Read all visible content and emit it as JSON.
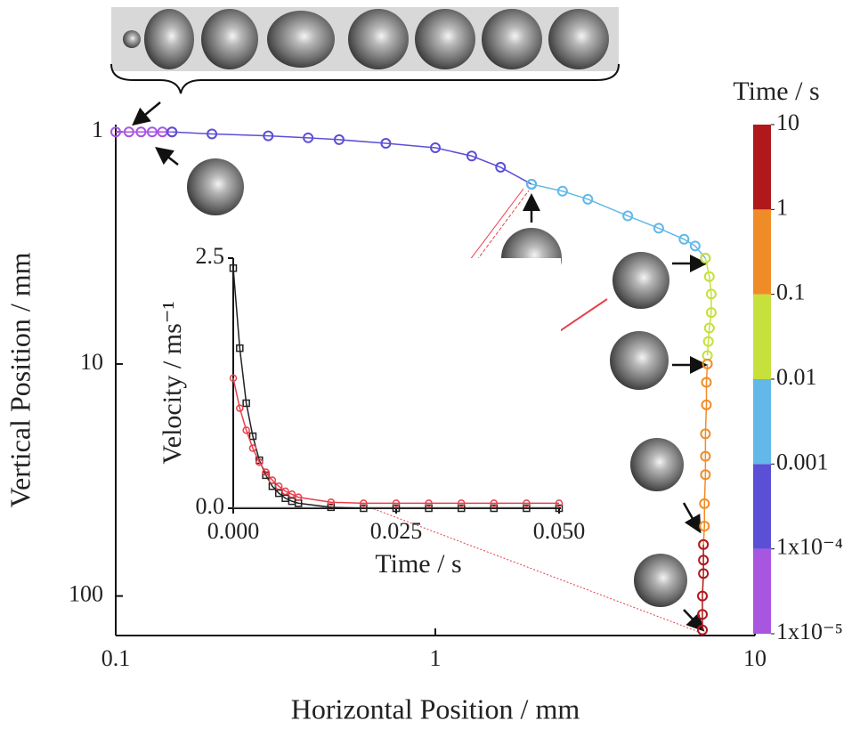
{
  "chart_data": [
    {
      "type": "scatter",
      "xlabel": "Horizontal Position / mm",
      "ylabel": "Vertical Position / mm",
      "xscale": "log",
      "yscale": "log",
      "yinverted": true,
      "xlim": [
        0.1,
        10
      ],
      "xticks": [
        0.1,
        1,
        10
      ],
      "ylim": [
        0.93,
        148
      ],
      "yticks": [
        1,
        10,
        100
      ],
      "series": [
        {
          "color": "#a855e0",
          "x": [
            0.1,
            0.11,
            0.12,
            0.13,
            0.14,
            0.15
          ],
          "y": [
            1.0,
            1.0,
            1.0,
            1.0,
            1.0,
            1.0
          ]
        },
        {
          "color": "#5b4fd6",
          "x": [
            0.15,
            0.2,
            0.3,
            0.4,
            0.5,
            0.7,
            1.0,
            1.3,
            1.6,
            2.0
          ],
          "y": [
            1.0,
            1.02,
            1.04,
            1.06,
            1.08,
            1.12,
            1.17,
            1.27,
            1.42,
            1.68
          ]
        },
        {
          "color": "#62b8e8",
          "x": [
            2.0,
            2.5,
            3,
            4,
            5,
            6,
            6.5,
            7
          ],
          "y": [
            1.68,
            1.8,
            1.95,
            2.3,
            2.6,
            2.9,
            3.1,
            3.5
          ]
        },
        {
          "color": "#c6e03c",
          "x": [
            7.0,
            7.2,
            7.3,
            7.3,
            7.2,
            7.15,
            7.1
          ],
          "y": [
            3.5,
            4.2,
            5,
            6,
            7,
            8,
            9.2
          ]
        },
        {
          "color": "#f08c28",
          "x": [
            7.1,
            7.05,
            7.05,
            7.0,
            7.0,
            7.0,
            6.95,
            6.95,
            6.9
          ],
          "y": [
            10,
            12,
            15,
            20,
            25,
            30,
            40,
            50,
            60
          ]
        },
        {
          "color": "#b0181c",
          "x": [
            6.9,
            6.9,
            6.9,
            6.85,
            6.85,
            6.85
          ],
          "y": [
            60,
            70,
            80,
            100,
            120,
            140
          ]
        }
      ],
      "colorbar": {
        "label": "Time / s",
        "scale": "log",
        "lim": [
          1e-05,
          10
        ],
        "ticks": [
          {
            "value": 1e-05,
            "label": "1x10⁻⁵"
          },
          {
            "value": 0.0001,
            "label": "1x10⁻⁴"
          },
          {
            "value": 0.001,
            "label": "0.001"
          },
          {
            "value": 0.01,
            "label": "0.01"
          },
          {
            "value": 0.1,
            "label": "0.1"
          },
          1,
          10
        ],
        "colors": [
          "#a855e0",
          "#5b4fd6",
          "#62b8e8",
          "#c6e03c",
          "#f08c28",
          "#b0181c"
        ]
      }
    },
    {
      "type": "line",
      "xlabel": "Time / s",
      "ylabel": "Velocity / ms⁻¹",
      "xlim": [
        0,
        0.05
      ],
      "xticks": [
        {
          "value": 0,
          "label": "0.000"
        },
        {
          "value": 0.025,
          "label": "0.025"
        },
        {
          "value": 0.05,
          "label": "0.050"
        }
      ],
      "ylim": [
        0,
        2.5
      ],
      "yticks": [
        {
          "value": 0,
          "label": "0.0"
        },
        2.5
      ],
      "x": [
        0,
        0.001,
        0.002,
        0.003,
        0.004,
        0.005,
        0.006,
        0.007,
        0.008,
        0.009,
        0.01,
        0.015,
        0.02,
        0.025,
        0.03,
        0.035,
        0.04,
        0.045,
        0.05
      ],
      "series": [
        {
          "color": "#222222",
          "marker": "square",
          "values": [
            2.4,
            1.6,
            1.05,
            0.72,
            0.48,
            0.33,
            0.22,
            0.15,
            0.1,
            0.07,
            0.05,
            0.01,
            0,
            0,
            0,
            0,
            0,
            0,
            0
          ]
        },
        {
          "color": "#e8404a",
          "marker": "circle",
          "values": [
            1.3,
            1.0,
            0.78,
            0.6,
            0.46,
            0.36,
            0.28,
            0.22,
            0.17,
            0.14,
            0.11,
            0.06,
            0.05,
            0.05,
            0.05,
            0.05,
            0.05,
            0.05,
            0.05
          ]
        }
      ]
    }
  ]
}
